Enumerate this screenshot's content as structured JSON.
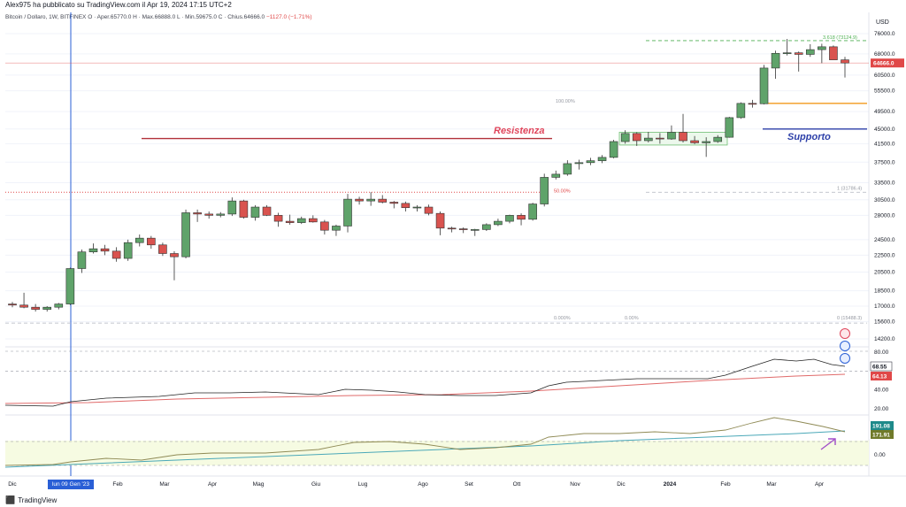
{
  "header": {
    "published_by": "Alex975 ha pubblicato su TradingView.com il Apr 19, 2024 17:15 UTC+2"
  },
  "legend": {
    "symbol": "Bitcoin / Dollaro, 1W, BITFINEX",
    "ohlc": "O · Aper.65770.0  H · Max.66888.0  L · Min.59675.0  C · Chius.64666.0",
    "change": "−1127.0 (−1.71%)"
  },
  "price_axis": {
    "currency": "USD",
    "ticks": [
      "76000.0",
      "68000.0",
      "60500.0",
      "55500.0",
      "49500.0",
      "45000.0",
      "41500.0",
      "37500.0",
      "33500.0",
      "30500.0",
      "28000.0",
      "24500.0",
      "22500.0",
      "20500.0",
      "18500.0",
      "17000.0",
      "15600.0",
      "14200.0"
    ],
    "current_price": "64666.0",
    "current_price_color": "#e04848"
  },
  "osc1_axis": {
    "ticks": [
      "80.00",
      "40.00",
      "20.00"
    ],
    "values": [
      {
        "label": "68.55",
        "color": "#131722"
      },
      {
        "label": "64.13",
        "color": "#e04848"
      }
    ]
  },
  "osc2_axis": {
    "ticks": [
      "0.00"
    ],
    "values": [
      {
        "label": "191.08",
        "color": "#1e8a8a"
      },
      {
        "label": "171.91",
        "color": "#707a2a"
      }
    ]
  },
  "time_axis": {
    "labels": [
      "Dic",
      "Feb",
      "Mar",
      "Apr",
      "Mag",
      "Giu",
      "Lug",
      "Ago",
      "Set",
      "Ott",
      "Nov",
      "Dic",
      "2024",
      "Feb",
      "Mar",
      "Apr"
    ],
    "selected": "lun 09 Gen '23"
  },
  "annotations": {
    "resistance": "Resistenza",
    "support": "Supporto",
    "fib_top": "3.618 (73124.9)",
    "fib_100": "100.00%",
    "fib_50": "50.00%",
    "fib_1": "1 (31786.4)",
    "fib_0a": "0.000%",
    "fib_0b": "0.00%",
    "fib_0c": "0 (15488.3)"
  },
  "chart_data": {
    "type": "candlestick",
    "interval": "1W",
    "symbol": "Bitcoin / Dollaro",
    "exchange": "BITFINEX",
    "candles_ohlc": [
      [
        17200,
        17400,
        16900,
        17100
      ],
      [
        17100,
        18300,
        16800,
        16900
      ],
      [
        16900,
        17200,
        16500,
        16700
      ],
      [
        16700,
        17000,
        16500,
        16900
      ],
      [
        16900,
        17300,
        16700,
        17200
      ],
      [
        17200,
        21000,
        17100,
        20900
      ],
      [
        20900,
        23200,
        20400,
        22900
      ],
      [
        22900,
        24000,
        22700,
        23300
      ],
      [
        23300,
        23800,
        22500,
        23000
      ],
      [
        23000,
        23500,
        21700,
        22100
      ],
      [
        22100,
        24500,
        21800,
        24100
      ],
      [
        24100,
        25200,
        23600,
        24700
      ],
      [
        24700,
        25000,
        23300,
        23800
      ],
      [
        23800,
        24100,
        22400,
        22700
      ],
      [
        22700,
        23000,
        19600,
        22300
      ],
      [
        22300,
        28900,
        22100,
        28400
      ],
      [
        28400,
        28900,
        27000,
        28200
      ],
      [
        28200,
        28600,
        27500,
        28000
      ],
      [
        28000,
        28500,
        27700,
        28200
      ],
      [
        28200,
        30900,
        27900,
        30300
      ],
      [
        30300,
        30500,
        27500,
        27700
      ],
      [
        27700,
        29600,
        27200,
        29300
      ],
      [
        29300,
        29600,
        27900,
        28000
      ],
      [
        28000,
        28400,
        26300,
        27100
      ],
      [
        27100,
        28100,
        26600,
        26900
      ],
      [
        26900,
        27800,
        26700,
        27500
      ],
      [
        27500,
        28000,
        26900,
        27000
      ],
      [
        27000,
        27300,
        25200,
        25800
      ],
      [
        25800,
        26600,
        25000,
        26400
      ],
      [
        26400,
        31500,
        25500,
        30600
      ],
      [
        30600,
        31000,
        29700,
        30300
      ],
      [
        30300,
        31800,
        29500,
        30600
      ],
      [
        30600,
        31300,
        29900,
        30100
      ],
      [
        30100,
        30300,
        29100,
        29900
      ],
      [
        29900,
        30200,
        28600,
        29200
      ],
      [
        29200,
        29600,
        28600,
        29300
      ],
      [
        29300,
        29700,
        28000,
        28300
      ],
      [
        28300,
        28600,
        25100,
        26100
      ],
      [
        26100,
        26300,
        25500,
        26000
      ],
      [
        26000,
        26200,
        25400,
        25900
      ],
      [
        25900,
        26000,
        25000,
        25900
      ],
      [
        25900,
        26800,
        25700,
        26600
      ],
      [
        26600,
        27500,
        26400,
        27100
      ],
      [
        27100,
        28100,
        26800,
        28000
      ],
      [
        28000,
        28300,
        26500,
        27400
      ],
      [
        27400,
        30000,
        27200,
        29800
      ],
      [
        29800,
        35200,
        29400,
        34500
      ],
      [
        34500,
        35800,
        34100,
        35100
      ],
      [
        35100,
        37900,
        34800,
        37200
      ],
      [
        37200,
        38000,
        36000,
        37400
      ],
      [
        37400,
        38400,
        36900,
        37800
      ],
      [
        37800,
        39000,
        37300,
        38500
      ],
      [
        38500,
        42400,
        38300,
        42000
      ],
      [
        42000,
        44700,
        41500,
        43900
      ],
      [
        43900,
        44200,
        41000,
        42200
      ],
      [
        42200,
        44300,
        41800,
        42800
      ],
      [
        42800,
        44000,
        41500,
        42600
      ],
      [
        42600,
        45900,
        42400,
        44200
      ],
      [
        44200,
        48900,
        41800,
        42200
      ],
      [
        42200,
        43300,
        41400,
        41700
      ],
      [
        41700,
        43000,
        38600,
        42000
      ],
      [
        42000,
        43500,
        41700,
        43000
      ],
      [
        43000,
        48100,
        42900,
        47900
      ],
      [
        47900,
        52100,
        47600,
        51800
      ],
      [
        51800,
        52800,
        50600,
        51700
      ],
      [
        51700,
        64000,
        51500,
        62900
      ],
      [
        62900,
        69200,
        59300,
        68200
      ],
      [
        68200,
        73800,
        67400,
        68400
      ],
      [
        68400,
        68900,
        61700,
        67800
      ],
      [
        67800,
        71700,
        66900,
        69600
      ],
      [
        69600,
        71900,
        64600,
        70700
      ],
      [
        70700,
        71200,
        66600,
        65800
      ],
      [
        65800,
        66900,
        59700,
        64666
      ]
    ],
    "lines": {
      "resistance": 42700,
      "support": 45000,
      "orange_level": 51800,
      "current": 64666,
      "dashed_upper": 73125,
      "dashed_lower": 31786,
      "dotted_red": 31786,
      "dashed_bottom": 15488
    },
    "oscillator_1": {
      "black_last": 68.55,
      "red_last": 64.13,
      "ylim": [
        20,
        80
      ]
    },
    "oscillator_2": {
      "olive_last": 171.91,
      "teal_last": 191.08
    }
  }
}
